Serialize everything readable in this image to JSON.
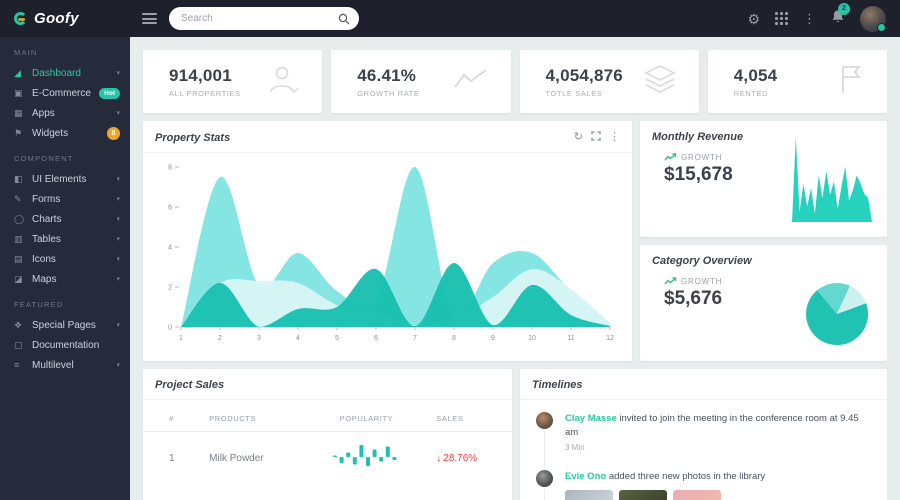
{
  "colors": {
    "accent": "#26c6aa",
    "topbar_bg": "#1e212c",
    "sidebar_bg": "#262b3b",
    "page_bg": "#e7edec",
    "red": "#f23d3d",
    "orange_badge": "#eda62e",
    "chart_light": "#7ee4e1",
    "chart_pale": "#d9f6f5",
    "chart_dark": "#16bfaf",
    "spark_teal": "#26d2bd",
    "growth_green": "#3fbf7f"
  },
  "topbar": {
    "logo_text": "Goofy",
    "search_placeholder": "Search",
    "notification_count": "2"
  },
  "sidebar": {
    "sections": [
      {
        "label": "MAIN",
        "items": [
          {
            "label": "Dashboard",
            "icon": "chart-area-icon",
            "glyph": "◢",
            "active": true,
            "chevron": true
          },
          {
            "label": "E-Commerce",
            "icon": "basket-icon",
            "glyph": "▣",
            "badge": {
              "text": "Hot",
              "type": "pill"
            }
          },
          {
            "label": "Apps",
            "icon": "apps-grid-icon",
            "glyph": "▦",
            "chevron": true
          },
          {
            "label": "Widgets",
            "icon": "flag-icon",
            "glyph": "⚑",
            "badge": {
              "text": "8",
              "type": "round"
            }
          }
        ]
      },
      {
        "label": "COMPONENT",
        "items": [
          {
            "label": "UI Elements",
            "icon": "ui-elements-icon",
            "glyph": "◧",
            "chevron": true
          },
          {
            "label": "Forms",
            "icon": "pencil-icon",
            "glyph": "✎",
            "chevron": true
          },
          {
            "label": "Charts",
            "icon": "circle-icon",
            "glyph": "◯",
            "chevron": true
          },
          {
            "label": "Tables",
            "icon": "table-icon",
            "glyph": "▥",
            "chevron": true
          },
          {
            "label": "Icons",
            "icon": "icons-icon",
            "glyph": "▤",
            "chevron": true
          },
          {
            "label": "Maps",
            "icon": "map-icon",
            "glyph": "◪",
            "chevron": true
          }
        ]
      },
      {
        "label": "FEATURED",
        "items": [
          {
            "label": "Special Pages",
            "icon": "special-pages-icon",
            "glyph": "❖",
            "chevron": true
          },
          {
            "label": "Documentation",
            "icon": "document-icon",
            "glyph": "▢"
          },
          {
            "label": "Multilevel",
            "icon": "multilevel-icon",
            "glyph": "≡",
            "chevron": true
          }
        ]
      }
    ]
  },
  "stats": [
    {
      "value": "914,001",
      "label": "ALL PROPERTIES",
      "icon": "user-icon"
    },
    {
      "value": "46.41%",
      "label": "GROWTH RATE",
      "icon": "trend-line-icon"
    },
    {
      "value": "4,054,876",
      "label": "TOTLE SALES",
      "icon": "layers-icon"
    },
    {
      "value": "4,054",
      "label": "RENTED",
      "icon": "flag-outline-icon"
    }
  ],
  "property_stats": {
    "title": "Property Stats"
  },
  "monthly_revenue": {
    "title": "Monthly Revenue",
    "growth_label": "GROWTH",
    "value": "$15,678"
  },
  "category_overview": {
    "title": "Category Overview",
    "growth_label": "GROWTH",
    "value": "$5,676"
  },
  "project_sales": {
    "title": "Project Sales",
    "headers": [
      "#",
      "PRODUCTS",
      "POPULARITY",
      "SALES"
    ],
    "rows": [
      {
        "num": "1",
        "product": "Milk Powder",
        "sales": "28.76%",
        "direction": "down"
      }
    ]
  },
  "timelines": {
    "title": "Timelines",
    "items": [
      {
        "name": "Clay Masse",
        "text": "invited to join the meeting in the conference room at 9.45 am",
        "time": "3 Min",
        "photos": []
      },
      {
        "name": "Evie Ono",
        "text": "added three new photos in the library",
        "time": "",
        "photos": [
          {
            "name": "sea-photo",
            "c1": "#a8b6bf",
            "c2": "#d7dde0"
          },
          {
            "name": "rocks-photo",
            "c1": "#5a6440",
            "c2": "#2e3526"
          },
          {
            "name": "sunset-photo",
            "c1": "#e9aab4",
            "c2": "#f3c1a8"
          }
        ]
      }
    ]
  },
  "chart_data": [
    {
      "id": "property_stats_area",
      "type": "area",
      "title": "Property Stats",
      "x": [
        1,
        2,
        3,
        4,
        5,
        6,
        7,
        8,
        9,
        10,
        11,
        12
      ],
      "ylim": [
        0,
        8
      ],
      "yticks": [
        0,
        2,
        4,
        6,
        8
      ],
      "grid": false,
      "legend": "none",
      "series": [
        {
          "name": "light-teal",
          "color": "#7ee4e1",
          "values": [
            0,
            7.5,
            2.1,
            3.7,
            1.8,
            1.3,
            8.0,
            0.4,
            3.2,
            3.7,
            1.8,
            0.2
          ]
        },
        {
          "name": "pale-teal",
          "color": "#d9f6f5",
          "values": [
            0,
            2.2,
            2.3,
            2.2,
            1.1,
            0.7,
            0.1,
            0.4,
            1.5,
            2.9,
            1.9,
            0.2
          ]
        },
        {
          "name": "dark-teal",
          "color": "#16bfaf",
          "values": [
            0,
            2.2,
            0.0,
            0.9,
            1.0,
            2.9,
            0.05,
            3.2,
            0.1,
            2.1,
            0.6,
            0.05
          ]
        }
      ]
    },
    {
      "id": "monthly_revenue_sparkline",
      "type": "area",
      "title": "Monthly Revenue sparkline",
      "values": [
        0,
        100,
        12,
        45,
        18,
        40,
        10,
        55,
        28,
        60,
        32,
        48,
        15,
        42,
        65,
        25,
        38,
        55,
        45,
        33,
        28,
        0
      ],
      "color": "#26d2bd"
    },
    {
      "id": "category_overview_pie",
      "type": "pie",
      "title": "Category Overview pie",
      "start_angle": -40,
      "slices": [
        {
          "name": "medium-teal",
          "value": 18,
          "color": "#63d8cf"
        },
        {
          "name": "pale-teal",
          "value": 12.5,
          "color": "#cdf1ee"
        },
        {
          "name": "dark-teal",
          "value": 69.5,
          "color": "#20c3b2"
        }
      ]
    },
    {
      "id": "popularity_sparkbar",
      "type": "bar",
      "title": "Milk Powder popularity",
      "values": [
        0.5,
        -2,
        1.5,
        -2.5,
        4,
        -3,
        2.5,
        -1.5,
        3.5,
        -1
      ],
      "color": "#1fc2b2"
    }
  ]
}
